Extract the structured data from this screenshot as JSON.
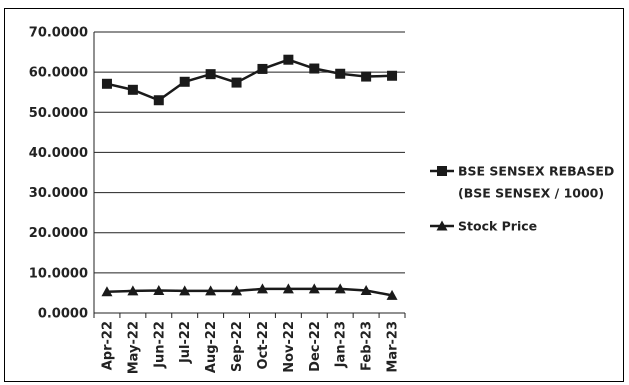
{
  "chart_data": {
    "type": "line",
    "categories": [
      "Apr-22",
      "May-22",
      "Jun-22",
      "Jul-22",
      "Aug-22",
      "Sep-22",
      "Oct-22",
      "Nov-22",
      "Dec-22",
      "Jan-23",
      "Feb-23",
      "Mar-23"
    ],
    "series": [
      {
        "name": "BSE SENSEX REBASED (BSE SENSEX / 1000)",
        "name_lines": [
          "BSE SENSEX REBASED",
          "(BSE SENSEX / 1000)"
        ],
        "marker": "square",
        "values": [
          57.1,
          55.6,
          53.0,
          57.6,
          59.5,
          57.4,
          60.8,
          63.1,
          60.9,
          59.6,
          58.9,
          59.1
        ]
      },
      {
        "name": "Stock Price",
        "name_lines": [
          "Stock Price"
        ],
        "marker": "triangle",
        "values": [
          5.3,
          5.5,
          5.6,
          5.5,
          5.5,
          5.5,
          6.0,
          6.0,
          6.0,
          6.0,
          5.6,
          4.4
        ]
      }
    ],
    "y_ticks": [
      "0.0000",
      "10.0000",
      "20.0000",
      "30.0000",
      "40.0000",
      "50.0000",
      "60.0000",
      "70.0000"
    ],
    "ylim": [
      0,
      70
    ],
    "grid": true,
    "legend_position": "right",
    "colors": {
      "line": "#1a1a1a",
      "grid": "#222222",
      "text": "#222222"
    }
  }
}
